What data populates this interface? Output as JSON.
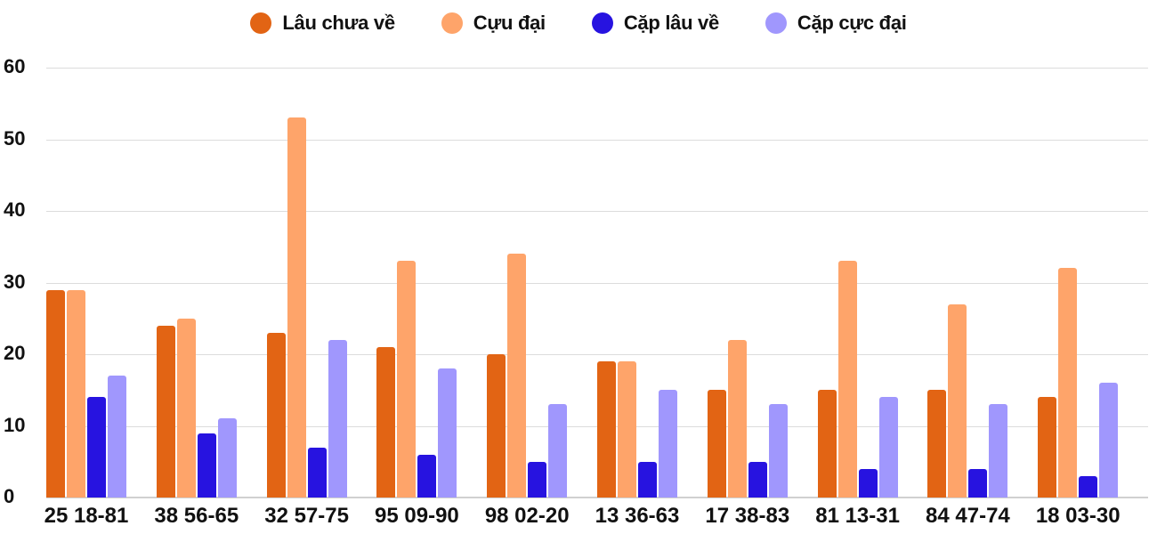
{
  "chart_data": {
    "type": "bar",
    "title": "",
    "xlabel": "",
    "ylabel": "",
    "ylim": [
      0,
      60
    ],
    "yticks": [
      0,
      10,
      20,
      30,
      40,
      50,
      60
    ],
    "grid": true,
    "legend_position": "top",
    "categories": [
      "25 18-81",
      "38 56-65",
      "32 57-75",
      "95 09-90",
      "98 02-20",
      "13 36-63",
      "17 38-83",
      "81 13-31",
      "84 47-74",
      "18 03-30"
    ],
    "series": [
      {
        "name": "Lâu chưa về",
        "color": "#e26414",
        "values": [
          29,
          24,
          23,
          21,
          20,
          19,
          15,
          15,
          15,
          14
        ]
      },
      {
        "name": "Cựu đại",
        "color": "#fea46a",
        "values": [
          29,
          25,
          53,
          33,
          34,
          19,
          22,
          33,
          27,
          32
        ]
      },
      {
        "name": "Cặp lâu về",
        "color": "#2713e0",
        "values": [
          14,
          9,
          7,
          6,
          5,
          5,
          5,
          4,
          4,
          3
        ]
      },
      {
        "name": "Cặp cực đại",
        "color": "#a097fd",
        "values": [
          17,
          11,
          22,
          18,
          13,
          15,
          13,
          14,
          13,
          16
        ]
      }
    ]
  }
}
